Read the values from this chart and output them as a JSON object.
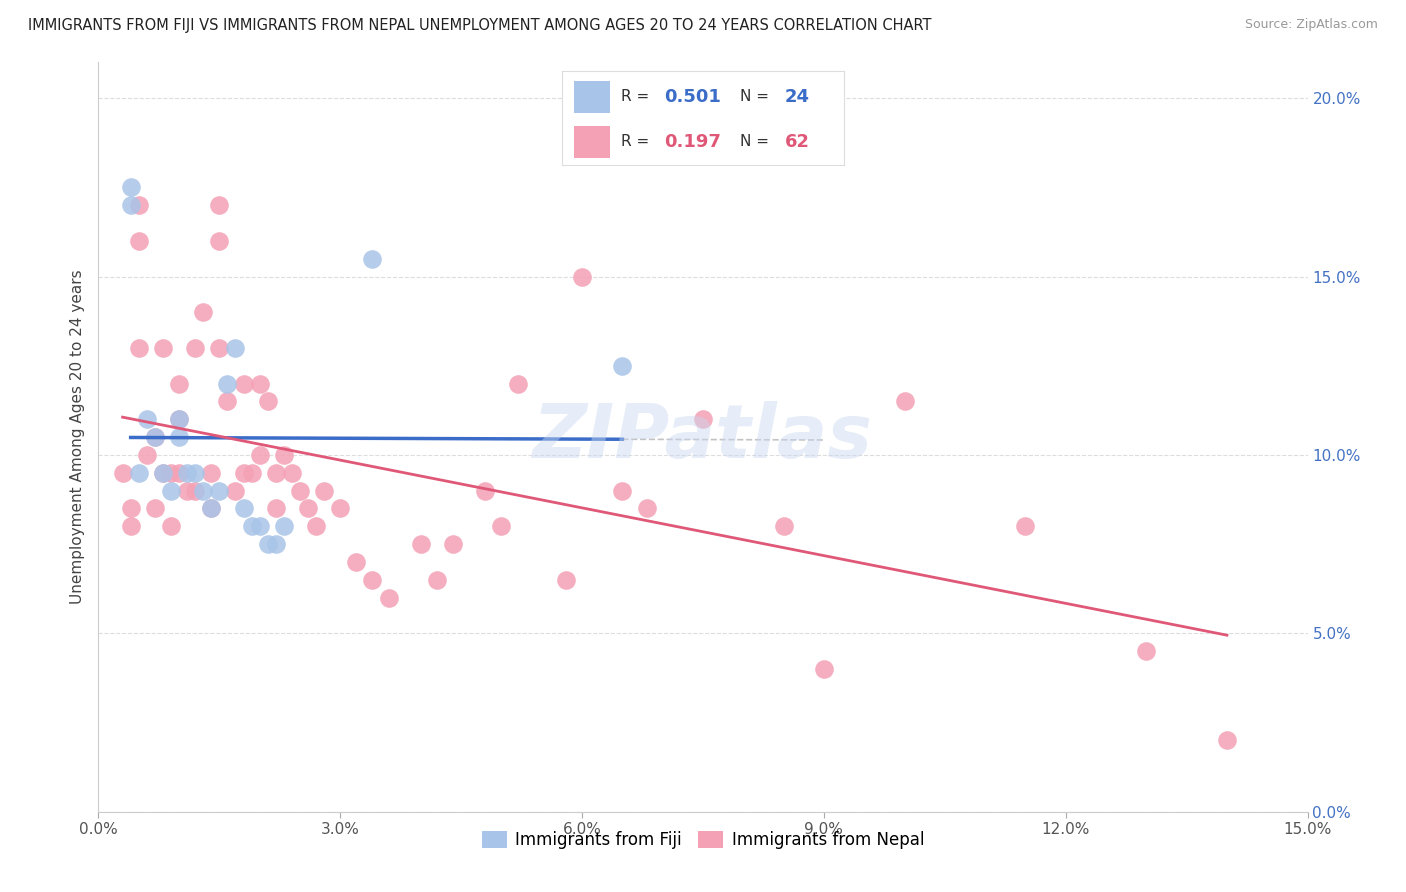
{
  "title": "IMMIGRANTS FROM FIJI VS IMMIGRANTS FROM NEPAL UNEMPLOYMENT AMONG AGES 20 TO 24 YEARS CORRELATION CHART",
  "source": "Source: ZipAtlas.com",
  "ylabel": "Unemployment Among Ages 20 to 24 years",
  "xlim": [
    0.0,
    0.15
  ],
  "ylim": [
    0.0,
    0.21
  ],
  "xticks": [
    0.0,
    0.03,
    0.06,
    0.09,
    0.12,
    0.15
  ],
  "xtick_labels": [
    "0.0%",
    "3.0%",
    "6.0%",
    "9.0%",
    "12.0%",
    "15.0%"
  ],
  "yticks_right": [
    0.0,
    0.05,
    0.1,
    0.15,
    0.2
  ],
  "ytick_labels_right": [
    "0.0%",
    "5.0%",
    "10.0%",
    "15.0%",
    "20.0%"
  ],
  "fiji_R": 0.501,
  "fiji_N": 24,
  "nepal_R": 0.197,
  "nepal_N": 62,
  "fiji_color": "#a8c4e8",
  "nepal_color": "#f4a0b5",
  "fiji_line_color": "#3a6cc8",
  "nepal_line_color": "#e05878",
  "background_color": "#ffffff",
  "grid_color": "#dddddd",
  "watermark": "ZIPatlas",
  "fiji_scatter_x": [
    0.004,
    0.004,
    0.005,
    0.006,
    0.007,
    0.008,
    0.009,
    0.01,
    0.01,
    0.011,
    0.012,
    0.013,
    0.014,
    0.015,
    0.016,
    0.017,
    0.018,
    0.019,
    0.02,
    0.021,
    0.022,
    0.023,
    0.034,
    0.065
  ],
  "fiji_scatter_y": [
    0.175,
    0.17,
    0.095,
    0.11,
    0.105,
    0.095,
    0.09,
    0.11,
    0.105,
    0.095,
    0.095,
    0.09,
    0.085,
    0.09,
    0.12,
    0.13,
    0.085,
    0.08,
    0.08,
    0.075,
    0.075,
    0.08,
    0.155,
    0.125
  ],
  "nepal_scatter_x": [
    0.003,
    0.004,
    0.004,
    0.005,
    0.005,
    0.005,
    0.006,
    0.007,
    0.007,
    0.008,
    0.008,
    0.009,
    0.009,
    0.01,
    0.01,
    0.01,
    0.011,
    0.012,
    0.012,
    0.013,
    0.014,
    0.014,
    0.015,
    0.015,
    0.015,
    0.016,
    0.017,
    0.018,
    0.018,
    0.019,
    0.02,
    0.02,
    0.021,
    0.022,
    0.022,
    0.023,
    0.024,
    0.025,
    0.026,
    0.027,
    0.028,
    0.03,
    0.032,
    0.034,
    0.036,
    0.04,
    0.042,
    0.044,
    0.048,
    0.05,
    0.052,
    0.058,
    0.06,
    0.065,
    0.068,
    0.075,
    0.085,
    0.09,
    0.1,
    0.115,
    0.13,
    0.14
  ],
  "nepal_scatter_y": [
    0.095,
    0.085,
    0.08,
    0.17,
    0.16,
    0.13,
    0.1,
    0.105,
    0.085,
    0.13,
    0.095,
    0.095,
    0.08,
    0.12,
    0.11,
    0.095,
    0.09,
    0.13,
    0.09,
    0.14,
    0.095,
    0.085,
    0.17,
    0.16,
    0.13,
    0.115,
    0.09,
    0.12,
    0.095,
    0.095,
    0.12,
    0.1,
    0.115,
    0.095,
    0.085,
    0.1,
    0.095,
    0.09,
    0.085,
    0.08,
    0.09,
    0.085,
    0.07,
    0.065,
    0.06,
    0.075,
    0.065,
    0.075,
    0.09,
    0.08,
    0.12,
    0.065,
    0.15,
    0.09,
    0.085,
    0.11,
    0.08,
    0.04,
    0.115,
    0.08,
    0.045,
    0.02
  ]
}
